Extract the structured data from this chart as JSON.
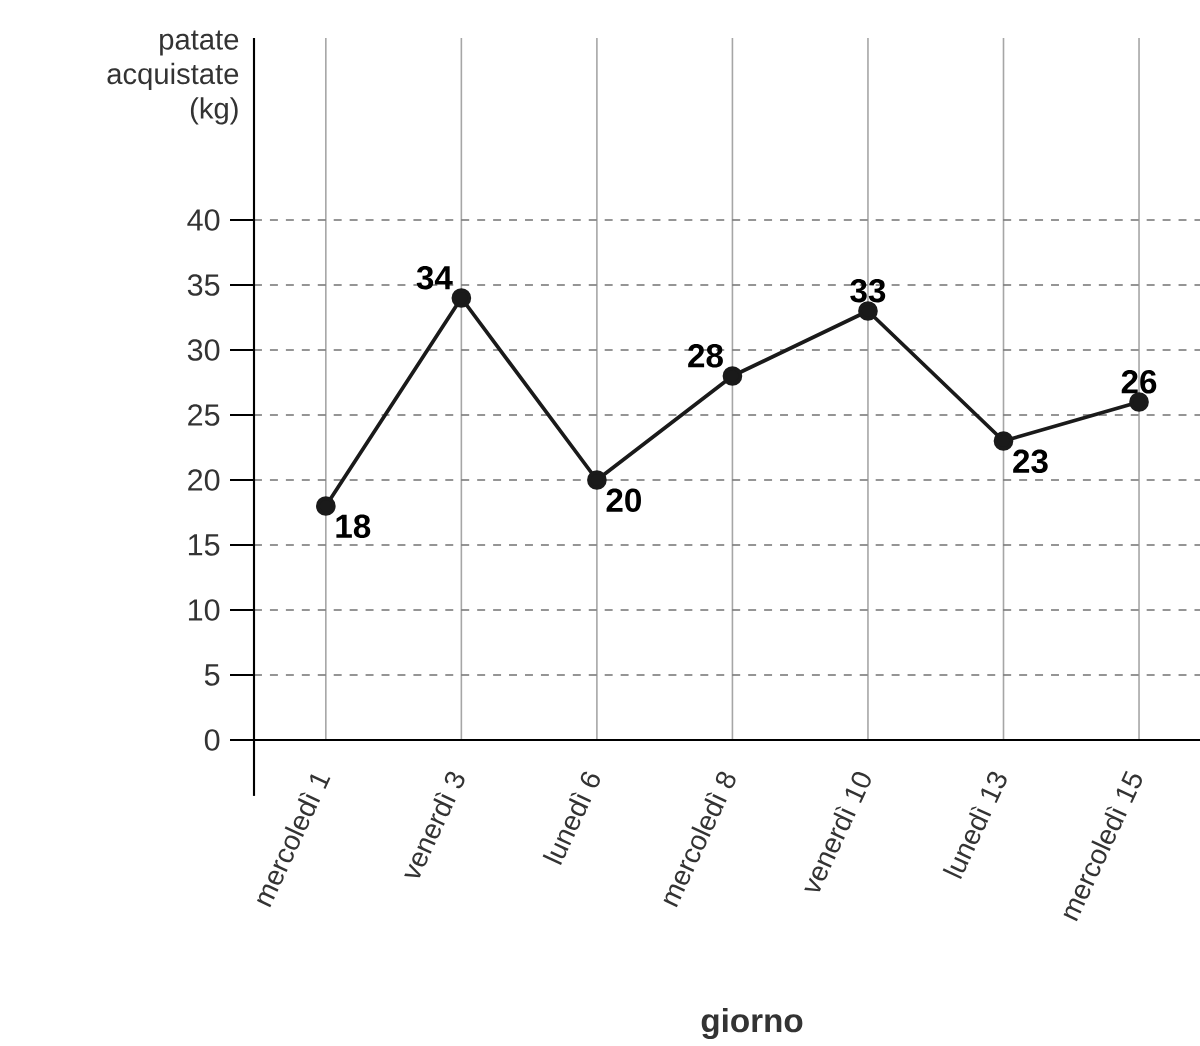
{
  "chart_data": {
    "type": "line",
    "xlabel": "giorno",
    "ylabel": "patate acquistate (kg)",
    "categories": [
      "mercoledì 1",
      "venerdì 3",
      "lunedì 6",
      "mercoledì 8",
      "venerdì 10",
      "lunedì 13",
      "mercoledì 15"
    ],
    "values": [
      18,
      34,
      20,
      28,
      33,
      23,
      26
    ],
    "color": "#1a1a1a",
    "ylim": [
      0,
      54
    ],
    "yticks": [
      0,
      5,
      10,
      15,
      20,
      25,
      30,
      35,
      40
    ],
    "grid": true,
    "marker": "circle",
    "line_style": "solid",
    "data_labels": true
  }
}
